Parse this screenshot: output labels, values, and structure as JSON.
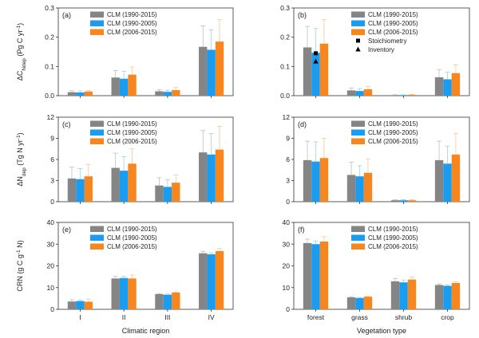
{
  "colors": {
    "CLM (1990-2015)": "#858585",
    "CLM (1990-2005)": "#1a9cf0",
    "CLM (2006-2015)": "#f7861e",
    "errorbar_grey": "#b5b5b5",
    "errorbar_blue": "#8fcaf2",
    "errorbar_orange": "#f9bf86"
  },
  "chart_data": [
    {
      "panel": "(a)",
      "type": "bar",
      "categories": [
        "I",
        "II",
        "III",
        "IV"
      ],
      "ylabel": "ΔC_Ndep (Pg C yr⁻¹)",
      "ylabel_main": "ΔC",
      "ylabel_sub": "Ndep",
      "ylabel_rest": " (Pg C yr",
      "ylabel_sup": "-1",
      "ylabel_end": ")",
      "ylim": [
        0,
        0.3
      ],
      "yticks": [
        "0.0",
        "0.1",
        "0.2",
        "0.3"
      ],
      "xlabel": "",
      "legend": [
        "CLM (1990-2015)",
        "CLM (1990-2005)",
        "CLM (2006-2015)"
      ],
      "series": [
        {
          "name": "CLM (1990-2015)",
          "values": [
            0.012,
            0.062,
            0.015,
            0.167
          ],
          "errors": [
            0.005,
            0.024,
            0.006,
            0.072
          ]
        },
        {
          "name": "CLM (1990-2005)",
          "values": [
            0.011,
            0.058,
            0.013,
            0.157
          ],
          "errors": [
            0.005,
            0.025,
            0.006,
            0.068
          ]
        },
        {
          "name": "CLM (2006-2015)",
          "values": [
            0.014,
            0.072,
            0.019,
            0.185
          ],
          "errors": [
            0.004,
            0.026,
            0.009,
            0.075
          ]
        }
      ]
    },
    {
      "panel": "(b)",
      "type": "bar",
      "categories": [
        "forest",
        "grass",
        "shrub",
        "crop"
      ],
      "ylim": [
        0,
        0.3
      ],
      "yticks": [
        "0.0",
        "0.1",
        "0.2",
        "0.3"
      ],
      "legend": [
        "CLM (1990-2015)",
        "CLM (1990-2005)",
        "CLM (2006-2015)",
        "Stoichiometry",
        "Inventory"
      ],
      "series": [
        {
          "name": "CLM (1990-2015)",
          "values": [
            0.165,
            0.018,
            0.002,
            0.063
          ],
          "errors": [
            0.072,
            0.008,
            0.001,
            0.026
          ]
        },
        {
          "name": "CLM (1990-2005)",
          "values": [
            0.147,
            0.016,
            0.002,
            0.056
          ],
          "errors": [
            0.083,
            0.008,
            0.001,
            0.024
          ]
        },
        {
          "name": "CLM (2006-2015)",
          "values": [
            0.178,
            0.022,
            0.003,
            0.077
          ],
          "errors": [
            0.082,
            0.01,
            0.001,
            0.028
          ]
        }
      ],
      "markers": [
        {
          "name": "Stoichiometry",
          "category": "forest",
          "value": 0.145
        },
        {
          "name": "Inventory",
          "category": "forest",
          "value": 0.117
        }
      ]
    },
    {
      "panel": "(c)",
      "type": "bar",
      "categories": [
        "I",
        "II",
        "III",
        "IV"
      ],
      "ylabel_main": "ΔN",
      "ylabel_sub": "dep",
      "ylabel_rest": " (Tg N yr",
      "ylabel_sup": "-1",
      "ylabel_end": ")",
      "ylim": [
        0,
        12
      ],
      "yticks": [
        "0",
        "3",
        "6",
        "9",
        "12"
      ],
      "legend": [
        "CLM (1990-2015)",
        "CLM (1990-2005)",
        "CLM (2006-2015)"
      ],
      "series": [
        {
          "name": "CLM (1990-2015)",
          "values": [
            3.3,
            4.8,
            2.3,
            7.0
          ],
          "errors": [
            1.6,
            2.1,
            1.1,
            3.1
          ]
        },
        {
          "name": "CLM (1990-2005)",
          "values": [
            3.2,
            4.4,
            2.1,
            6.7
          ],
          "errors": [
            1.5,
            2.0,
            1.0,
            3.0
          ]
        },
        {
          "name": "CLM (2006-2015)",
          "values": [
            3.6,
            5.4,
            2.7,
            7.4
          ],
          "errors": [
            1.7,
            2.1,
            1.1,
            3.3
          ]
        }
      ]
    },
    {
      "panel": "(d)",
      "type": "bar",
      "categories": [
        "forest",
        "grass",
        "shrub",
        "crop"
      ],
      "ylim": [
        0,
        12
      ],
      "yticks": [
        "0",
        "3",
        "6",
        "9",
        "12"
      ],
      "legend": [
        "CLM (1990-2015)",
        "CLM (1990-2005)",
        "CLM (2006-2015)"
      ],
      "series": [
        {
          "name": "CLM (1990-2015)",
          "values": [
            5.9,
            3.8,
            0.2,
            5.9
          ],
          "errors": [
            2.7,
            1.8,
            0.1,
            2.7
          ]
        },
        {
          "name": "CLM (1990-2005)",
          "values": [
            5.7,
            3.6,
            0.2,
            5.4
          ],
          "errors": [
            2.8,
            1.5,
            0.1,
            2.5
          ]
        },
        {
          "name": "CLM (2006-2015)",
          "values": [
            6.2,
            4.1,
            0.2,
            6.7
          ],
          "errors": [
            2.8,
            2.0,
            0.1,
            3.0
          ]
        }
      ]
    },
    {
      "panel": "(e)",
      "type": "bar",
      "categories": [
        "I",
        "II",
        "III",
        "IV"
      ],
      "xlabel": "Climatic region",
      "ylabel_main": "CRN (g C g",
      "ylabel_sub": "",
      "ylabel_rest": "",
      "ylabel_sup": "-1",
      "ylabel_end": " N)",
      "ylim": [
        0,
        40
      ],
      "yticks": [
        "0",
        "10",
        "20",
        "30",
        "40"
      ],
      "legend": [
        "CLM (1990-2015)",
        "CLM (1990-2005)",
        "CLM (2006-2015)"
      ],
      "series": [
        {
          "name": "CLM (1990-2015)",
          "values": [
            3.6,
            14.2,
            7.0,
            25.8
          ],
          "errors": [
            0.8,
            1.0,
            0.3,
            0.9
          ]
        },
        {
          "name": "CLM (1990-2005)",
          "values": [
            3.8,
            14.4,
            6.7,
            25.3
          ],
          "errors": [
            0.5,
            0.8,
            0.3,
            0.7
          ]
        },
        {
          "name": "CLM (2006-2015)",
          "values": [
            3.5,
            14.2,
            7.7,
            26.8
          ],
          "errors": [
            1.2,
            1.6,
            0.3,
            1.2
          ]
        }
      ]
    },
    {
      "panel": "(f)",
      "type": "bar",
      "categories": [
        "forest",
        "grass",
        "shrub",
        "crop"
      ],
      "xlabel": "Vegetation type",
      "ylim": [
        0,
        40
      ],
      "yticks": [
        "0",
        "10",
        "20",
        "30",
        "40"
      ],
      "legend": [
        "CLM (1990-2015)",
        "CLM (1990-2005)",
        "CLM (2006-2015)"
      ],
      "series": [
        {
          "name": "CLM (1990-2015)",
          "values": [
            30.5,
            5.5,
            12.9,
            11.2
          ],
          "errors": [
            1.8,
            0.3,
            1.2,
            0.5
          ]
        },
        {
          "name": "CLM (1990-2005)",
          "values": [
            30.0,
            5.2,
            12.4,
            10.8
          ],
          "errors": [
            1.5,
            0.3,
            1.1,
            0.5
          ]
        },
        {
          "name": "CLM (2006-2015)",
          "values": [
            31.2,
            5.8,
            13.7,
            12.1
          ],
          "errors": [
            2.2,
            0.3,
            1.2,
            0.5
          ]
        }
      ]
    }
  ]
}
